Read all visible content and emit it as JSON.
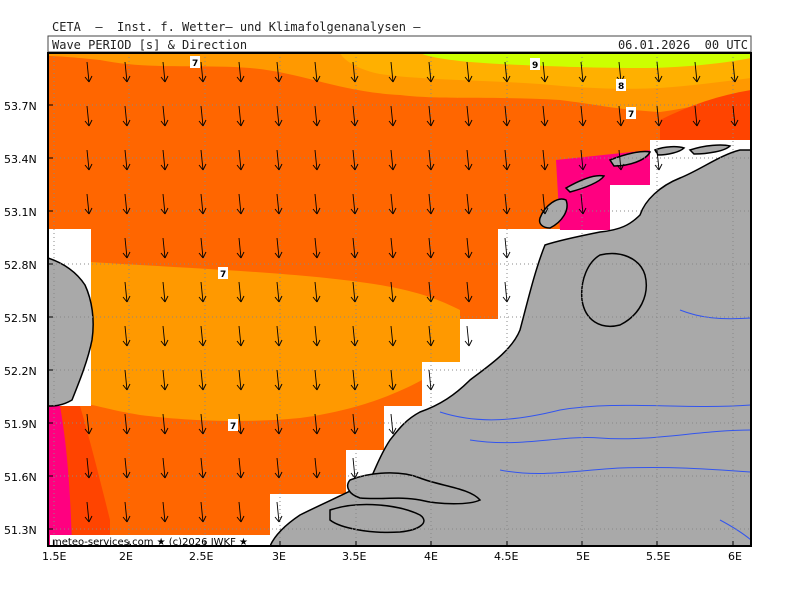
{
  "header": {
    "source": "CETA  —  Inst. f. Wetter— und Klimafolgenanalysen —",
    "parameter": "Wave_PERIOD_[s]_&_Direction",
    "valid_time": "06.01.2026  00 UTC"
  },
  "map": {
    "lon_labels": [
      "1.5E",
      "2E",
      "2.5E",
      "3E",
      "3.5E",
      "4E",
      "4.5E",
      "5E",
      "5.5E",
      "6E"
    ],
    "lat_labels": [
      "53.7N",
      "53.4N",
      "53.1N",
      "52.8N",
      "52.5N",
      "52.2N",
      "51.9N",
      "51.6N",
      "51.3N"
    ],
    "contour_labels": [
      "9",
      "8",
      "7",
      "7",
      "7",
      "7"
    ],
    "credit": "meteo-services.com ★ (c)2026 IWKF ★",
    "colors": {
      "period_6_7": "#ff6600",
      "period_7_8": "#ff9900",
      "period_8_9": "#ffb000",
      "period_9_plus": "#ccff00",
      "period_5_6": "#ff4400",
      "period_4_5": "#ff0080",
      "land": "#a9a9a9",
      "coastline": "#000000",
      "rivers": "#3355ee",
      "arrows": "#000000",
      "grid": "#888888"
    },
    "arrow_direction": "southward",
    "grid": "dotted"
  }
}
